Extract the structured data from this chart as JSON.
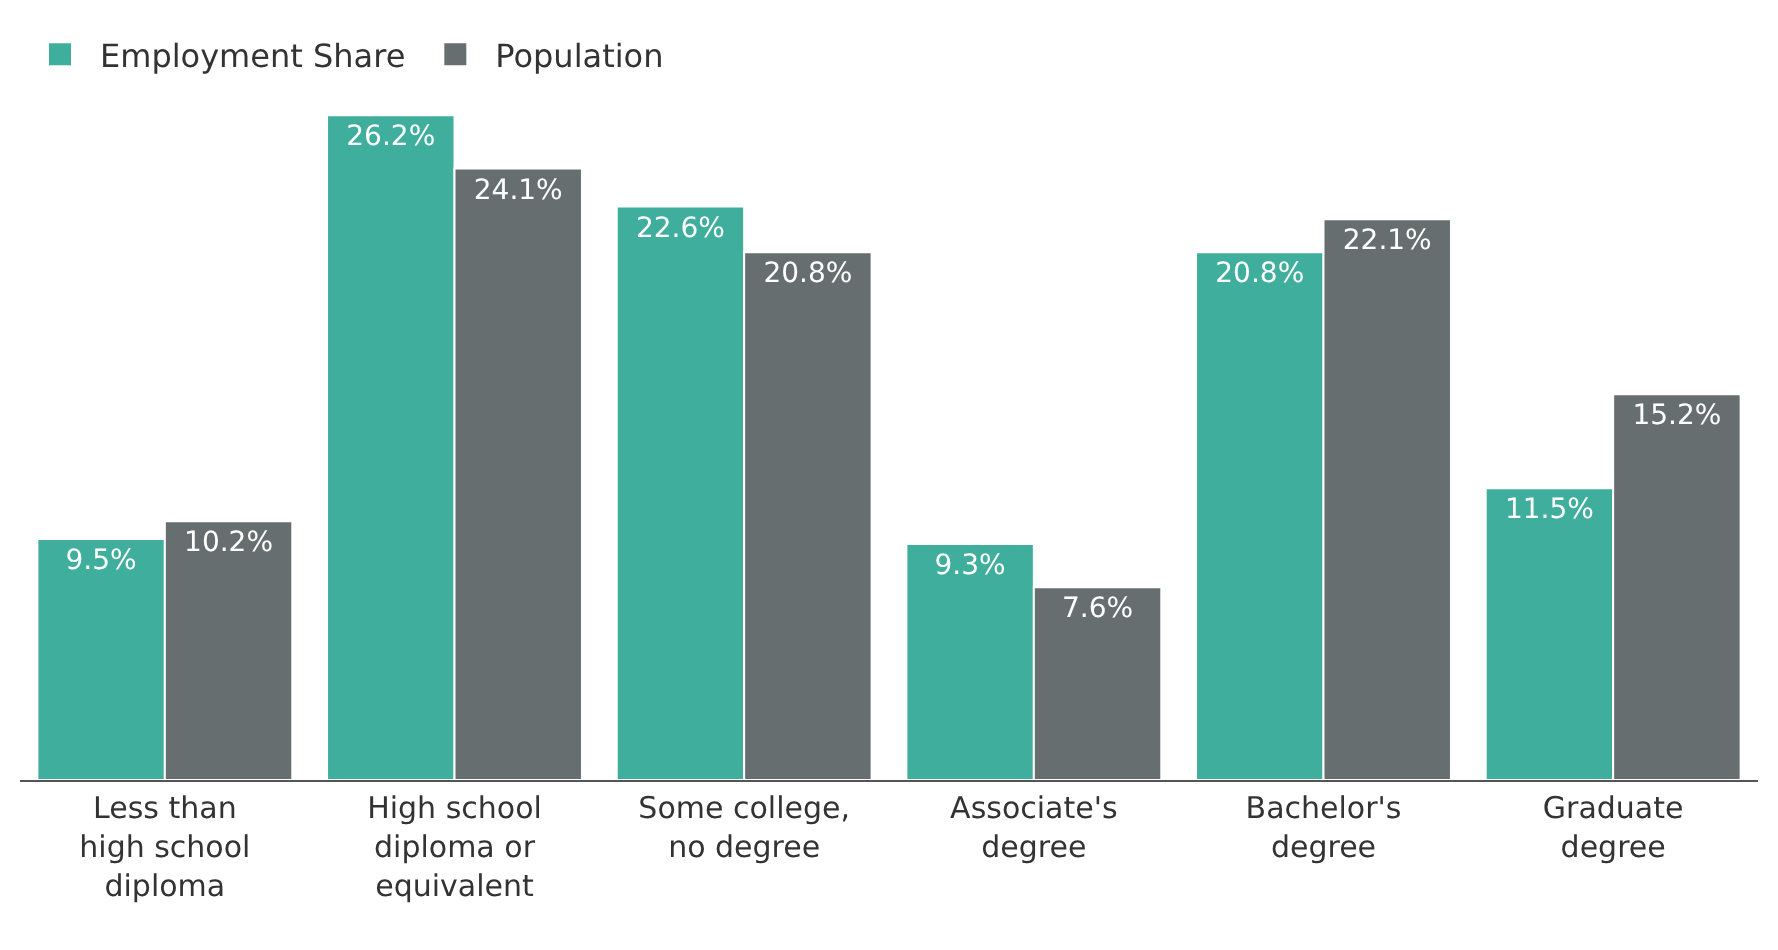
{
  "chart_data": {
    "type": "bar",
    "categories": [
      "Less than high school diploma",
      "High school diploma or equivalent",
      "Some college, no degree",
      "Associate's degree",
      "Bachelor's degree",
      "Graduate degree"
    ],
    "series": [
      {
        "name": "Employment Share",
        "color": "#3fae9c",
        "values": [
          9.5,
          26.2,
          22.6,
          9.3,
          20.8,
          11.5
        ],
        "value_labels": [
          "9.5%",
          "26.2%",
          "22.6%",
          "9.3%",
          "20.8%",
          "11.5%"
        ]
      },
      {
        "name": "Population",
        "color": "#666e6f",
        "values": [
          10.2,
          24.1,
          20.8,
          7.6,
          22.1,
          15.2
        ],
        "value_labels": [
          "10.2%",
          "24.1%",
          "20.8%",
          "7.6%",
          "22.1%",
          "15.2%"
        ]
      }
    ],
    "legend": "top left"
  }
}
